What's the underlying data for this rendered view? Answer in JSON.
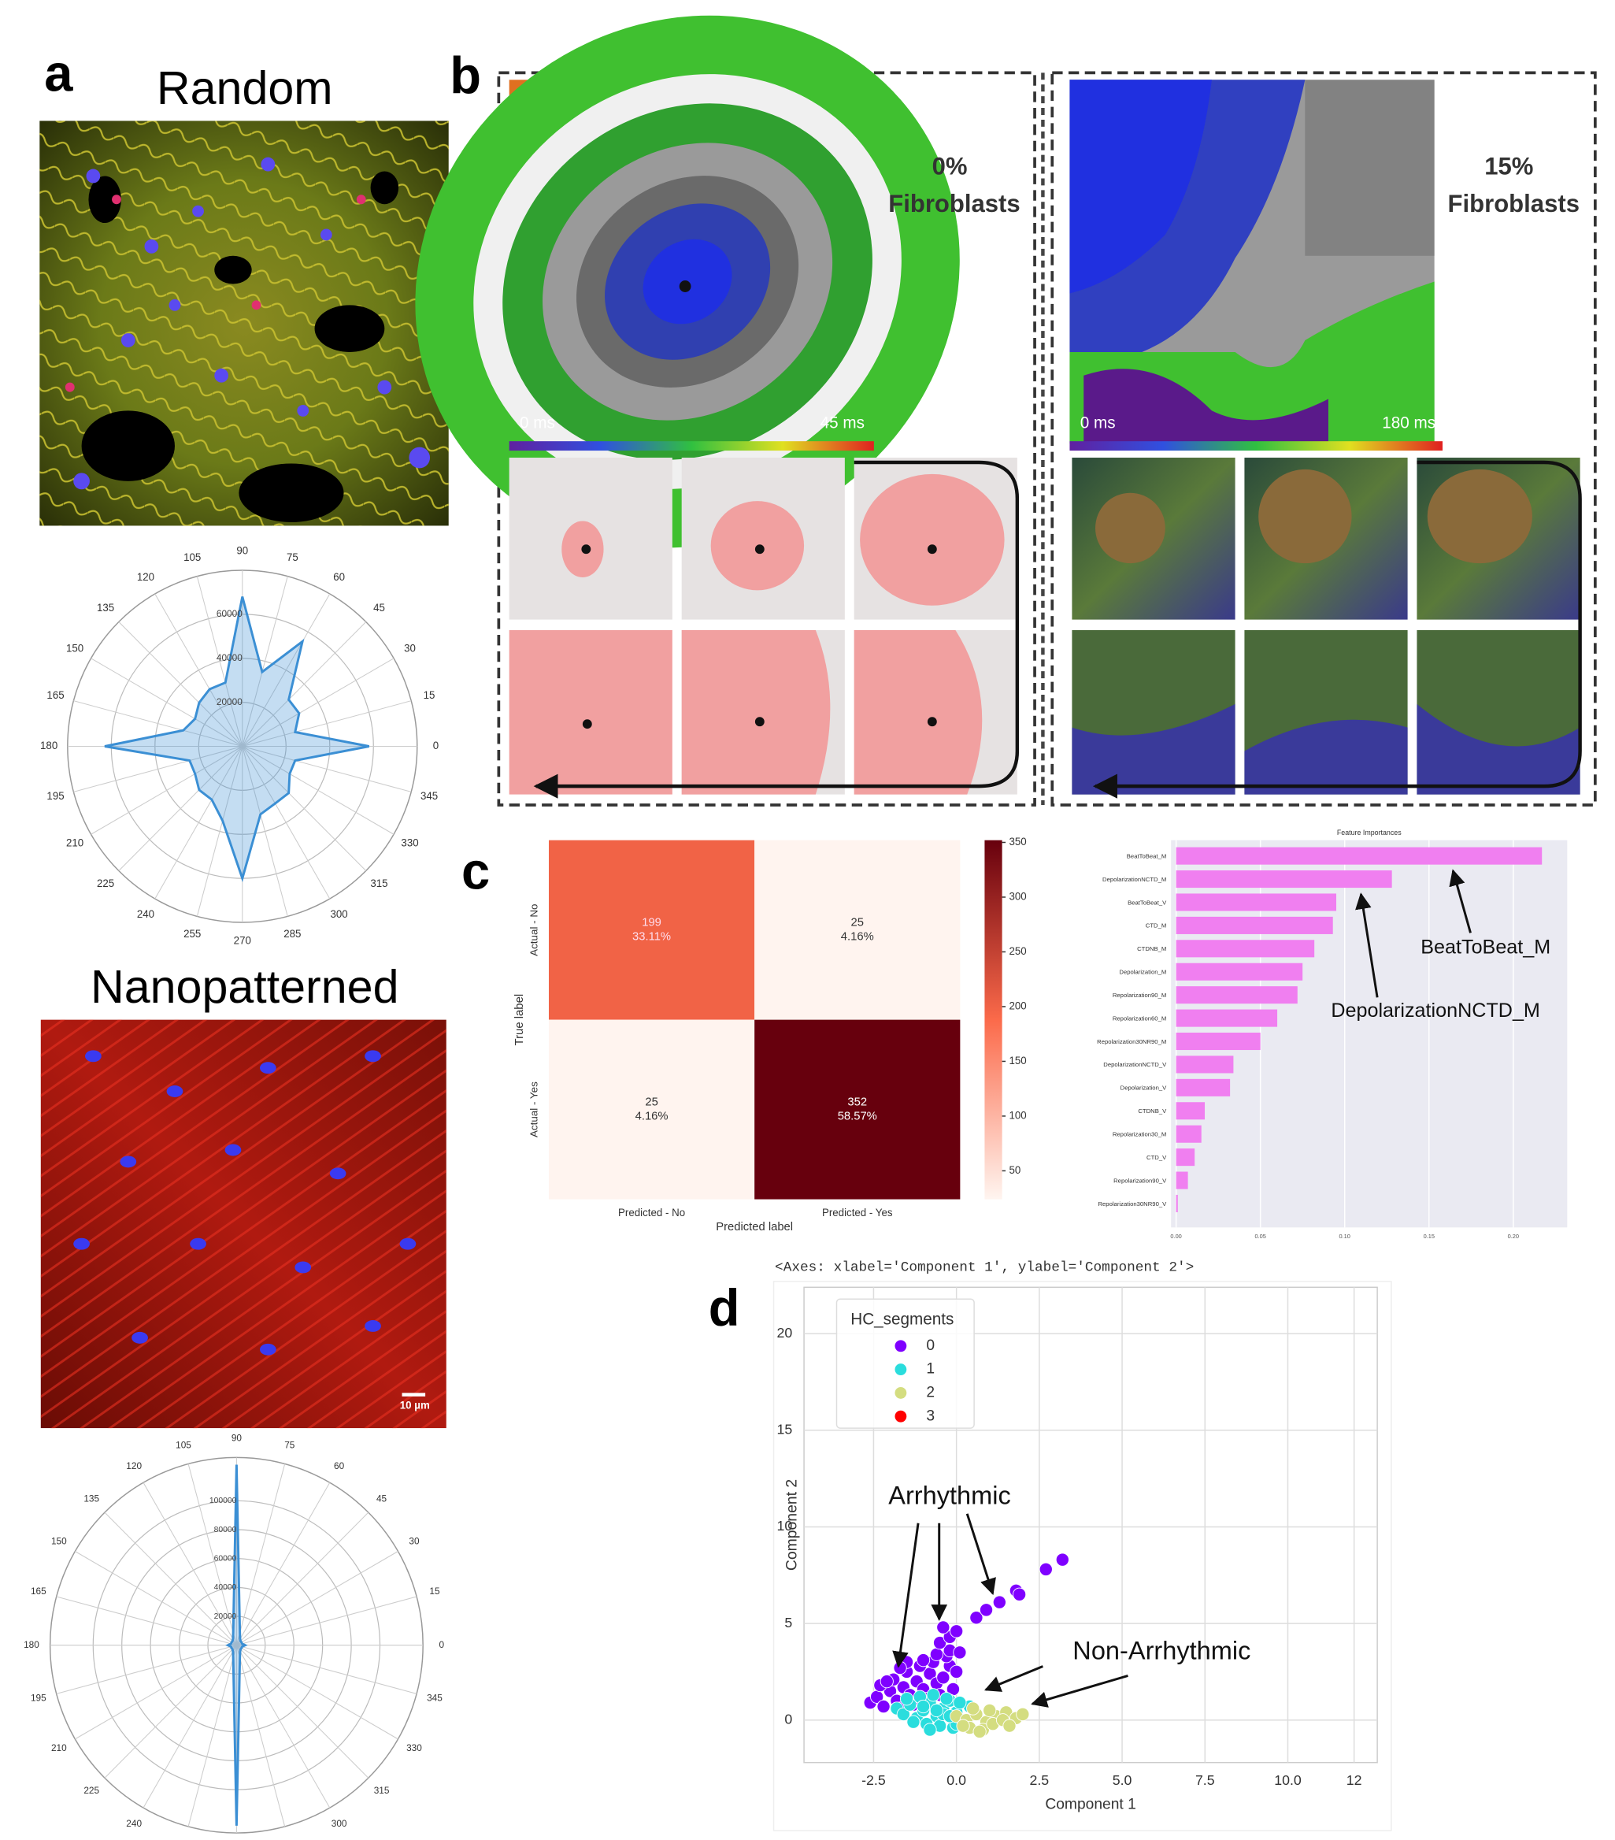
{
  "panel_labels": [
    "a",
    "b",
    "c",
    "d"
  ],
  "panel_a": {
    "titles": [
      "Random",
      "Nanopatterned"
    ],
    "scale_bar": "10 µm"
  },
  "panel_b": {
    "maps": [
      {
        "line1": "0%",
        "line2": "Fibroblasts",
        "min_label": "0 ms",
        "max_label": "45 ms"
      },
      {
        "line1": "15%",
        "line2": "Fibroblasts",
        "min_label": "0 ms",
        "max_label": "180 ms"
      }
    ]
  },
  "chart_data": [
    {
      "type": "polar",
      "theta": [
        0,
        15,
        30,
        45,
        60,
        75,
        90,
        105,
        120,
        135,
        150,
        165,
        180,
        195,
        210,
        225,
        240,
        255,
        270,
        285,
        300,
        315,
        330,
        345
      ],
      "values": [
        58000,
        25000,
        30000,
        30000,
        55000,
        35000,
        68000,
        30000,
        30000,
        28000,
        25000,
        28000,
        63000,
        25000,
        25000,
        28000,
        28000,
        35000,
        60000,
        32000,
        30000,
        30000,
        25000,
        25000
      ],
      "color": "#3b8fd4",
      "rlim": [
        0,
        80000
      ],
      "rticks": [
        20000,
        40000,
        60000
      ],
      "thetaticks": [
        0,
        15,
        30,
        45,
        60,
        75,
        90,
        105,
        120,
        135,
        150,
        165,
        180,
        195,
        210,
        225,
        240,
        255,
        270,
        285,
        300,
        315,
        330,
        345
      ]
    },
    {
      "type": "polar",
      "theta": [
        0,
        15,
        30,
        45,
        60,
        75,
        90,
        105,
        120,
        135,
        150,
        165,
        180,
        195,
        210,
        225,
        240,
        255,
        270,
        285,
        300,
        315,
        330,
        345
      ],
      "values": [
        6000,
        4000,
        4000,
        4000,
        5000,
        9000,
        125000,
        9000,
        5000,
        4000,
        4000,
        4000,
        6000,
        4000,
        4000,
        4000,
        5000,
        9000,
        125000,
        9000,
        5000,
        4000,
        4000,
        4000
      ],
      "color": "#3b8fd4",
      "rlim": [
        0,
        130000
      ],
      "rticks": [
        20000,
        40000,
        60000,
        80000,
        100000
      ],
      "thetaticks": [
        0,
        15,
        30,
        45,
        60,
        75,
        90,
        105,
        120,
        135,
        150,
        165,
        180,
        195,
        210,
        225,
        240,
        255,
        270,
        285,
        300,
        315,
        330,
        345
      ]
    },
    {
      "type": "heatmap",
      "x_categories": [
        "Predicted - No",
        "Predicted - Yes"
      ],
      "y_categories": [
        "Actual - No",
        "Actual - Yes"
      ],
      "values": [
        [
          199,
          25
        ],
        [
          25,
          352
        ]
      ],
      "percent_labels": [
        [
          "33.11%",
          "4.16%"
        ],
        [
          "4.16%",
          "58.57%"
        ]
      ],
      "xlabel": "Predicted label",
      "ylabel": "True label",
      "clim": [
        24,
        352
      ],
      "cticks": [
        50,
        100,
        150,
        200,
        250,
        300,
        350
      ]
    },
    {
      "type": "barh",
      "title": "Feature Importances",
      "categories": [
        "BeatToBeat_M",
        "DepolarizationNCTD_M",
        "BeatToBeat_V",
        "CTD_M",
        "CTDNB_M",
        "Depolarization_M",
        "Repolarization90_M",
        "Repolarization60_M",
        "Repolarization30NR90_M",
        "DepolarizationNCTD_V",
        "Depolarization_V",
        "CTDNB_V",
        "Repolarization30_M",
        "CTD_V",
        "Repolarization90_V",
        "Repolarization30NR90_V"
      ],
      "values": [
        0.217,
        0.128,
        0.095,
        0.093,
        0.082,
        0.075,
        0.072,
        0.06,
        0.05,
        0.034,
        0.032,
        0.017,
        0.015,
        0.011,
        0.007,
        0.001
      ],
      "color": "#f07ff0",
      "xlim": [
        -0.003,
        0.232
      ],
      "xticks": [
        {
          "value": 0,
          "label": "0.00"
        },
        {
          "value": 0.05,
          "label": "0.05"
        },
        {
          "value": 0.1,
          "label": "0.10"
        },
        {
          "value": 0.15,
          "label": "0.15"
        },
        {
          "value": 0.2,
          "label": "0.20"
        }
      ],
      "annotations": [
        "BeatToBeat_M",
        "DepolarizationNCTD_M"
      ]
    },
    {
      "type": "scatter",
      "title": "<Axes: xlabel='Component 1', ylabel='Component 2'>",
      "xlabel": "Component 1",
      "ylabel": "Component 2",
      "legend_title": "HC_segments",
      "legend": "upper left",
      "grid": true,
      "xlim": [
        -4.6,
        12.7
      ],
      "ylim": [
        -2.2,
        22.4
      ],
      "xticks": [
        -2.5,
        {
          "value": 0,
          "label": "0.0"
        },
        2.5,
        {
          "value": 5,
          "label": "5.0"
        },
        7.5,
        {
          "value": 10,
          "label": "10.0"
        },
        12
      ],
      "yticks": [
        0,
        5,
        10,
        15,
        20
      ],
      "annotations": [
        "Arrhythmic",
        "Non-Arrhythmic"
      ],
      "series": [
        {
          "name": "0",
          "color": "#7f00ff",
          "x": [
            -2.6,
            -2.4,
            -2.2,
            -2.0,
            -1.8,
            -1.6,
            -1.4,
            -1.2,
            -1.0,
            -0.8,
            -0.6,
            -0.4,
            -0.2,
            0.0,
            -2.3,
            -1.9,
            -1.5,
            -1.1,
            -0.7,
            -0.3,
            -1.7,
            -1.3,
            -0.9,
            -0.5,
            -0.1,
            -1.5,
            -1.0,
            -0.6,
            -0.2,
            0.1,
            -0.5,
            -0.2,
            0.0,
            -0.4,
            0.6,
            0.9,
            1.3,
            1.8,
            1.9,
            2.7,
            3.2,
            -2.1,
            -1.7
          ],
          "y": [
            0.9,
            1.2,
            0.7,
            1.5,
            1.0,
            1.7,
            1.3,
            2.0,
            1.6,
            2.4,
            1.9,
            2.2,
            2.8,
            2.5,
            1.8,
            2.1,
            2.5,
            2.8,
            3.0,
            3.3,
            0.6,
            0.8,
            1.1,
            1.3,
            1.6,
            3.0,
            3.1,
            3.4,
            3.6,
            3.5,
            4.0,
            4.3,
            4.6,
            4.8,
            5.3,
            5.7,
            6.1,
            6.7,
            6.5,
            7.8,
            8.3,
            2.0,
            2.7
          ]
        },
        {
          "name": "1",
          "color": "#2adddd",
          "x": [
            -1.8,
            -1.6,
            -1.4,
            -1.2,
            -1.0,
            -0.8,
            -0.6,
            -0.4,
            -0.2,
            0.0,
            0.2,
            0.4,
            -1.5,
            -1.1,
            -0.7,
            -0.3,
            0.1,
            -1.3,
            -0.9,
            -0.5,
            -0.1,
            0.3,
            -0.8,
            -0.4,
            0.0,
            -1.0,
            -0.6,
            -0.2
          ],
          "y": [
            0.6,
            0.3,
            0.8,
            0.1,
            0.5,
            0.9,
            0.2,
            0.6,
            1.0,
            0.4,
            0.0,
            0.7,
            1.1,
            1.2,
            1.3,
            1.1,
            0.9,
            -0.1,
            -0.2,
            -0.3,
            -0.4,
            -0.1,
            -0.5,
            0.3,
            -0.2,
            0.7,
            0.5,
            0.2
          ]
        },
        {
          "name": "2",
          "color": "#d4dd80",
          "x": [
            0.0,
            0.3,
            0.6,
            0.9,
            1.2,
            1.5,
            1.8,
            2.0,
            0.4,
            0.8,
            1.1,
            1.4,
            0.2,
            0.7,
            1.0,
            1.6,
            0.5
          ],
          "y": [
            0.2,
            0.0,
            0.3,
            -0.1,
            0.2,
            0.4,
            0.1,
            0.3,
            -0.4,
            -0.5,
            -0.2,
            0.0,
            -0.3,
            -0.6,
            0.5,
            -0.3,
            0.6
          ]
        },
        {
          "name": "3",
          "color": "#ff0000",
          "x": [],
          "y": []
        }
      ]
    }
  ]
}
